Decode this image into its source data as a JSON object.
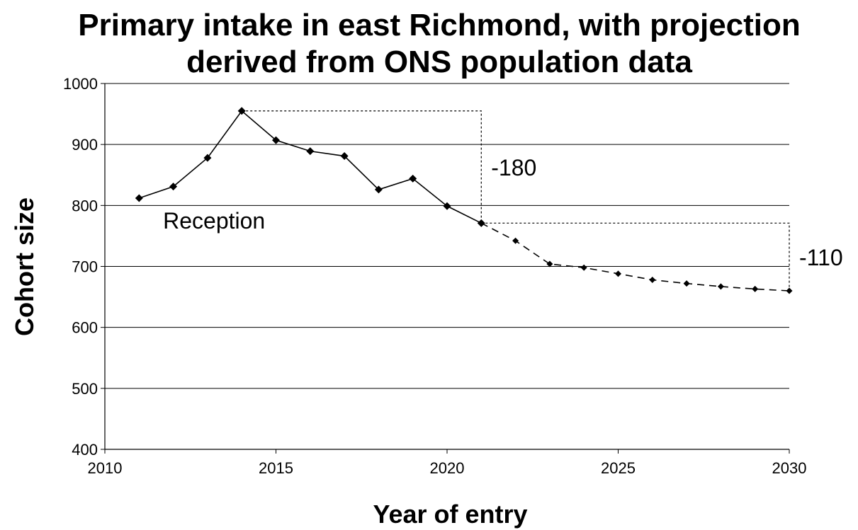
{
  "chart_data": {
    "type": "line",
    "title_lines": [
      "Primary intake in east Richmond, with projection",
      "derived from ONS population data"
    ],
    "xlabel": "Year of entry",
    "ylabel": "Cohort size",
    "xlim": [
      2010,
      2030
    ],
    "ylim": [
      400,
      1000
    ],
    "xticks": [
      2010,
      2015,
      2020,
      2025,
      2030
    ],
    "yticks": [
      400,
      500,
      600,
      700,
      800,
      900,
      1000
    ],
    "grid": "horizontal",
    "series": [
      {
        "style": "solid",
        "x": [
          2011,
          2012,
          2013,
          2014,
          2015,
          2016,
          2017,
          2018,
          2019,
          2020,
          2021
        ],
        "y": [
          812,
          831,
          878,
          955,
          907,
          889,
          881,
          826,
          844,
          799,
          771
        ]
      },
      {
        "style": "dashed",
        "x": [
          2021,
          2022,
          2023,
          2024,
          2025,
          2026,
          2027,
          2028,
          2029,
          2030
        ],
        "y": [
          771,
          742,
          704,
          698,
          688,
          678,
          672,
          667,
          663,
          660
        ]
      }
    ],
    "annotations": [
      {
        "text": "Reception",
        "x": 2011.7,
        "y": 776
      },
      {
        "text": "-180",
        "from_year": 2014,
        "to_year": 2021,
        "from_value": 955,
        "to_value": 771
      },
      {
        "text": "-110",
        "from_year": 2021,
        "to_year": 2030,
        "from_value": 771,
        "to_value": 660
      }
    ]
  }
}
